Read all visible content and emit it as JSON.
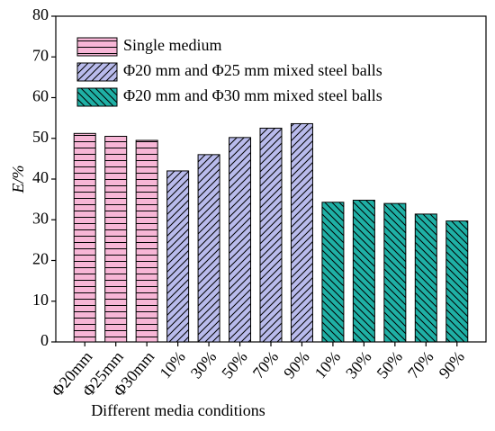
{
  "chart_data": {
    "type": "bar",
    "x_label": "Different media conditions",
    "y_label": "E/%",
    "categories": [
      "Φ20mm",
      "Φ25mm",
      "Φ30mm",
      "10%",
      "30%",
      "50%",
      "70%",
      "90%",
      "10%",
      "30%",
      "50%",
      "70%",
      "90%"
    ],
    "series": [
      {
        "name": "Single medium",
        "color": "#f7b6d6",
        "hatch": "horizontal",
        "values": [
          51.2,
          50.5,
          49.5,
          null,
          null,
          null,
          null,
          null,
          null,
          null,
          null,
          null,
          null
        ]
      },
      {
        "name": "Φ20 mm and Φ25 mm mixed steel balls",
        "color": "#b9bbec",
        "hatch": "forward",
        "values": [
          null,
          null,
          null,
          42,
          46,
          50.2,
          52.5,
          53.6,
          null,
          null,
          null,
          null,
          null
        ]
      },
      {
        "name": "Φ20 mm and Φ30 mm mixed steel balls",
        "color": "#1fb0a5",
        "hatch": "backward",
        "values": [
          null,
          null,
          null,
          null,
          null,
          null,
          null,
          null,
          34.3,
          34.8,
          34,
          31.4,
          29.7
        ]
      }
    ],
    "ylim": [
      0,
      80
    ],
    "yticks": [
      0,
      10,
      20,
      30,
      40,
      50,
      60,
      70,
      80
    ],
    "legend": "upper left"
  }
}
